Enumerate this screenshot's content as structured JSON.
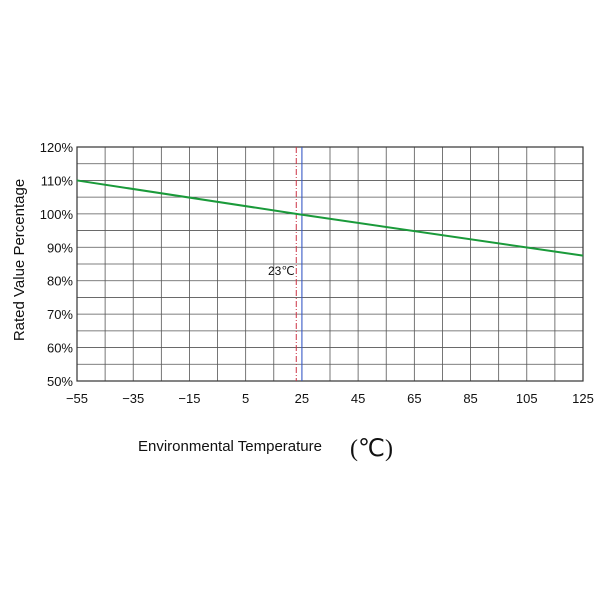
{
  "chart_data": {
    "type": "line",
    "ylabel": "Rated Value Percentage",
    "xlabel": "Environmental Temperature",
    "xlabel_unit": "(℃)",
    "xlim": [
      -55,
      125
    ],
    "ylim": [
      50,
      120
    ],
    "x_ticks": [
      -55,
      -35,
      -15,
      5,
      25,
      45,
      65,
      85,
      105,
      125
    ],
    "x_tick_labels": [
      "−55",
      "−35",
      "−15",
      "5",
      "25",
      "45",
      "65",
      "85",
      "105",
      "125"
    ],
    "y_ticks": [
      50,
      60,
      70,
      80,
      90,
      100,
      110,
      120
    ],
    "y_tick_labels": [
      "50%",
      "60%",
      "70%",
      "80%",
      "90%",
      "100%",
      "110%",
      "120%"
    ],
    "grid": true,
    "series": [
      {
        "x": [
          -55,
          23,
          125
        ],
        "y": [
          110,
          100,
          87.5
        ],
        "color": "#1a9a3a"
      }
    ],
    "reference_line": {
      "x": 23,
      "label": "23℃",
      "color": "#cc3344"
    },
    "reference_line_2": {
      "x": 25,
      "color": "#3355cc"
    }
  }
}
